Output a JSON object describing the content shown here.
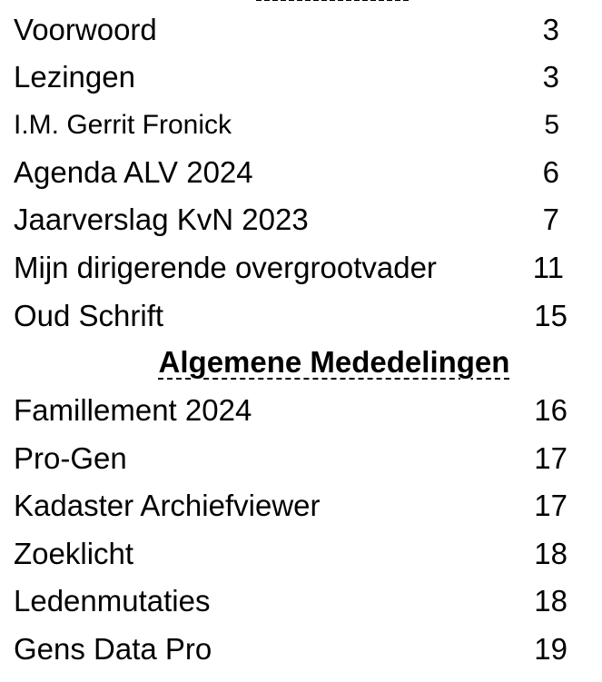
{
  "toc": {
    "entries_top": [
      {
        "title": "Voorwoord",
        "page": "3"
      },
      {
        "title": "Lezingen",
        "page": "3"
      },
      {
        "title": "I.M. Gerrit Fronick",
        "page": "5"
      },
      {
        "title": "Agenda ALV 2024",
        "page": "6"
      },
      {
        "title": "Jaarverslag KvN 2023",
        "page": "7"
      },
      {
        "title": "Mijn dirigerende overgrootvader",
        "page": "11"
      },
      {
        "title": "Oud Schrift",
        "page": "15"
      }
    ],
    "section_heading": "Algemene Mededelingen",
    "entries_bottom": [
      {
        "title": "Famillement 2024",
        "page": "16"
      },
      {
        "title": "Pro-Gen",
        "page": "17"
      },
      {
        "title": "Kadaster Archiefviewer",
        "page": "17"
      },
      {
        "title": "Zoeklicht",
        "page": "18"
      },
      {
        "title": "Ledenmutaties",
        "page": "18"
      },
      {
        "title": "Gens Data Pro",
        "page": "19"
      }
    ]
  }
}
